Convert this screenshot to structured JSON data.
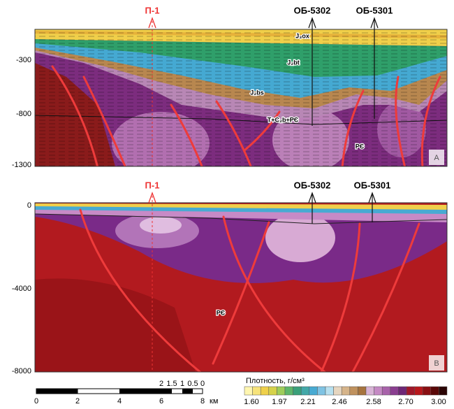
{
  "panel_a": {
    "y_labels": [
      "-300",
      "-800",
      "-1300"
    ],
    "wells": [
      "П-1",
      "ОБ-5302",
      "ОБ-5301"
    ],
    "formations": [
      "J₃ox",
      "J₂bt",
      "J₂bs",
      "T+C₂b+PЄ",
      "PЄ"
    ],
    "letter": "A"
  },
  "panel_b": {
    "y_labels": [
      "0",
      "-4000",
      "-8000"
    ],
    "wells": [
      "П-1",
      "ОБ-5302",
      "ОБ-5301"
    ],
    "formation": "PЄ",
    "letter": "B"
  },
  "scale_bar": {
    "labels": [
      "0",
      "2",
      "4",
      "6",
      "8"
    ],
    "unit": "км",
    "detail_labels": [
      "2",
      "1.5",
      "1",
      "0.5",
      "0"
    ]
  },
  "legend": {
    "title": "Плотность, г/см³",
    "labels": [
      "1.60",
      "1.97",
      "2.21",
      "2.46",
      "2.58",
      "2.70",
      "3.00"
    ]
  }
}
